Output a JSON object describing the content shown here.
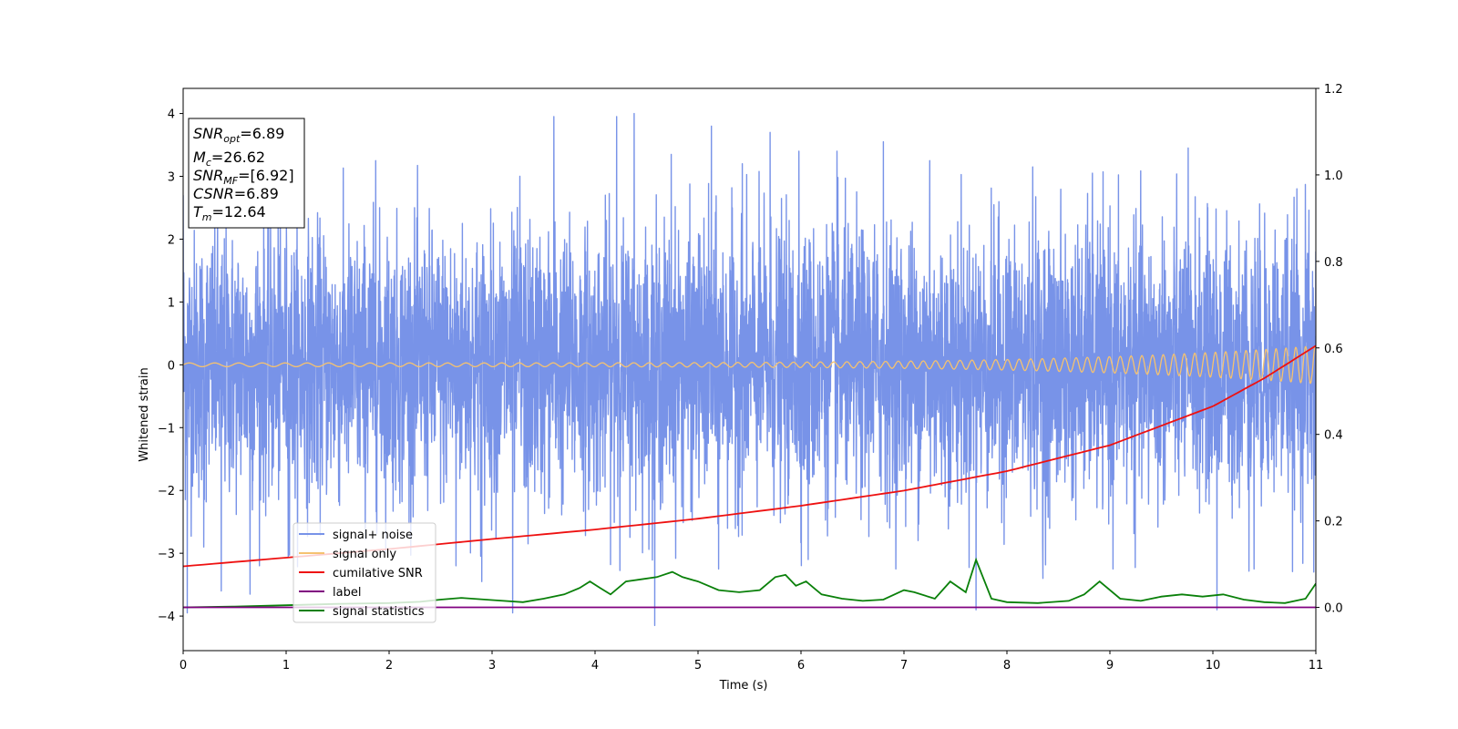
{
  "chart_data": {
    "type": "line",
    "xlabel": "Time (s)",
    "ylabel": "Whitened strain",
    "xlim": [
      0,
      11
    ],
    "ylim": [
      -4.55,
      4.4
    ],
    "y2lim": [
      -0.1,
      1.2
    ],
    "xticks": [
      "0",
      "1",
      "2",
      "3",
      "4",
      "5",
      "6",
      "7",
      "8",
      "9",
      "10",
      "11"
    ],
    "yticks": [
      "4",
      "3",
      "2",
      "1",
      "0",
      "−1",
      "−2",
      "−3",
      "−4"
    ],
    "y2ticks": [
      "1.2",
      "1.0",
      "0.8",
      "0.6",
      "0.4",
      "0.2",
      "0.0"
    ],
    "grid": false,
    "legend_position": "lower-left",
    "series": [
      {
        "name": "signal+ noise",
        "axis": "left",
        "color": "#7893e8",
        "description_values": "noise-dominated strain, amplitude roughly between -4.2 and 4.0",
        "extremes": [
          {
            "x": 0.0,
            "y": 2.7
          },
          {
            "x": 0.04,
            "y": -3.95
          },
          {
            "x": 0.2,
            "y": -2.9
          },
          {
            "x": 0.37,
            "y": -3.6
          },
          {
            "x": 0.65,
            "y": -3.65
          },
          {
            "x": 1.02,
            "y": -3.05
          },
          {
            "x": 1.87,
            "y": 3.25
          },
          {
            "x": 2.65,
            "y": -3.2
          },
          {
            "x": 2.9,
            "y": -3.45
          },
          {
            "x": 3.2,
            "y": -3.95
          },
          {
            "x": 3.27,
            "y": 3.0
          },
          {
            "x": 3.35,
            "y": -2.85
          },
          {
            "x": 3.6,
            "y": 3.95
          },
          {
            "x": 4.1,
            "y": 2.7
          },
          {
            "x": 4.21,
            "y": 3.95
          },
          {
            "x": 4.38,
            "y": 4.0
          },
          {
            "x": 4.58,
            "y": -4.15
          },
          {
            "x": 4.74,
            "y": 3.35
          },
          {
            "x": 5.13,
            "y": 3.8
          },
          {
            "x": 5.2,
            "y": -3.25
          },
          {
            "x": 5.43,
            "y": 3.2
          },
          {
            "x": 5.7,
            "y": 3.7
          },
          {
            "x": 5.98,
            "y": 3.4
          },
          {
            "x": 6.07,
            "y": -3.1
          },
          {
            "x": 6.35,
            "y": 3.4
          },
          {
            "x": 6.8,
            "y": 3.55
          },
          {
            "x": 7.25,
            "y": 3.25
          },
          {
            "x": 7.7,
            "y": -3.9
          },
          {
            "x": 8.25,
            "y": 3.15
          },
          {
            "x": 8.35,
            "y": -3.4
          },
          {
            "x": 8.83,
            "y": 3.05
          },
          {
            "x": 9.03,
            "y": -3.25
          },
          {
            "x": 9.76,
            "y": 3.45
          },
          {
            "x": 10.04,
            "y": -3.9
          },
          {
            "x": 10.4,
            "y": -3.25
          },
          {
            "x": 10.98,
            "y": -3.3
          }
        ]
      },
      {
        "name": "signal only",
        "axis": "left",
        "color": "#f5c270",
        "description_values": "chirp signal, amplitude growing from about 0.03 at t=0 to about 0.3 at t=11"
      },
      {
        "name": "cumilative SNR",
        "axis": "right",
        "color": "#ee1111",
        "x": [
          0,
          1,
          2,
          3,
          4,
          5,
          6,
          7,
          8,
          9,
          10,
          10.5,
          11
        ],
        "values": [
          0.095,
          0.115,
          0.135,
          0.158,
          0.18,
          0.205,
          0.235,
          0.27,
          0.315,
          0.375,
          0.465,
          0.53,
          0.605
        ]
      },
      {
        "name": "label",
        "axis": "right",
        "color": "#800080",
        "x": [
          0,
          11
        ],
        "values": [
          0.0,
          0.0
        ]
      },
      {
        "name": "signal statistics",
        "axis": "right",
        "color": "#0a800a",
        "x": [
          0,
          0.5,
          1.0,
          1.5,
          2.0,
          2.3,
          2.5,
          2.7,
          3.0,
          3.3,
          3.5,
          3.7,
          3.85,
          3.95,
          4.05,
          4.15,
          4.3,
          4.45,
          4.6,
          4.75,
          4.85,
          5.0,
          5.2,
          5.4,
          5.6,
          5.75,
          5.85,
          5.95,
          6.05,
          6.2,
          6.4,
          6.6,
          6.8,
          7.0,
          7.1,
          7.3,
          7.45,
          7.6,
          7.7,
          7.85,
          8.0,
          8.3,
          8.6,
          8.75,
          8.9,
          9.1,
          9.3,
          9.5,
          9.7,
          9.9,
          10.1,
          10.3,
          10.5,
          10.7,
          10.9,
          11.0
        ],
        "values": [
          0.0,
          0.002,
          0.005,
          0.008,
          0.01,
          0.013,
          0.018,
          0.022,
          0.017,
          0.012,
          0.02,
          0.03,
          0.045,
          0.06,
          0.045,
          0.03,
          0.06,
          0.065,
          0.07,
          0.082,
          0.07,
          0.06,
          0.04,
          0.035,
          0.04,
          0.07,
          0.075,
          0.05,
          0.06,
          0.03,
          0.02,
          0.015,
          0.018,
          0.04,
          0.035,
          0.02,
          0.06,
          0.035,
          0.11,
          0.02,
          0.012,
          0.01,
          0.015,
          0.03,
          0.06,
          0.02,
          0.015,
          0.025,
          0.03,
          0.025,
          0.03,
          0.018,
          0.012,
          0.01,
          0.02,
          0.055
        ]
      }
    ],
    "annotations": {
      "box_lines": [
        {
          "sym": "SNR",
          "sub": "opt",
          "text": "=6.89"
        },
        {
          "sym": "M",
          "sub": "c",
          "text": "=26.62"
        },
        {
          "sym": "SNR",
          "sub": "MF",
          "text": "=[6.92]"
        },
        {
          "sym": "CSNR",
          "sub": "",
          "text": "=6.89"
        },
        {
          "sym": "T",
          "sub": "m",
          "text": "=12.64"
        }
      ]
    }
  }
}
